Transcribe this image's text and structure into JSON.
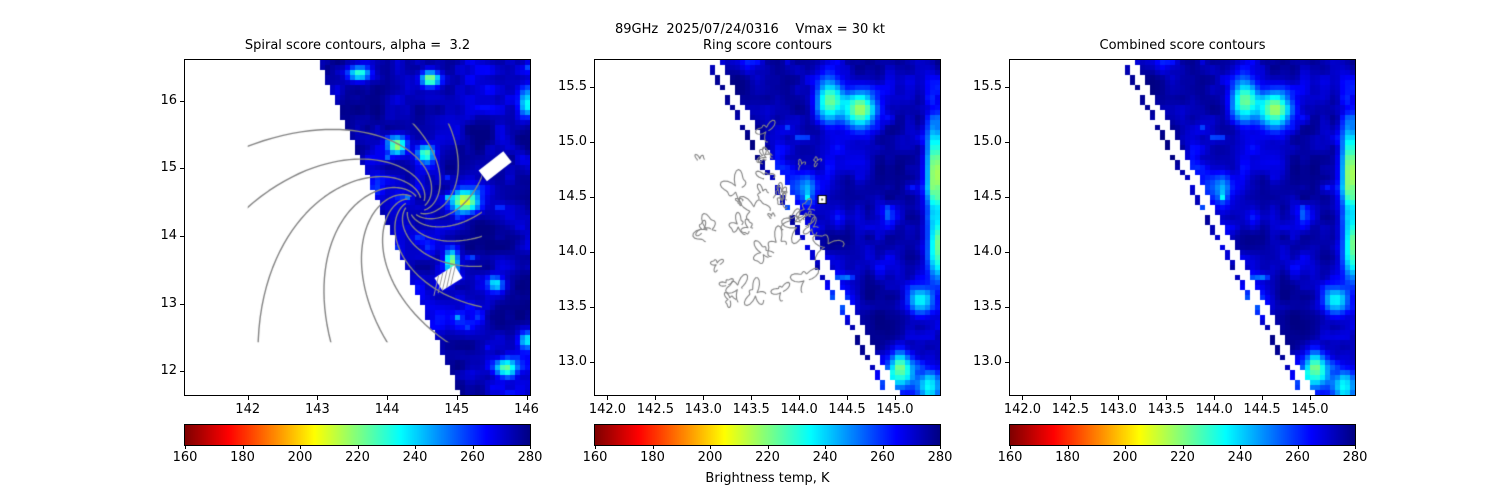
{
  "suptitle": "89GHz  2025/07/24/0316    Vmax = 30 kt",
  "colorbar": {
    "label": "Brightness temp, K",
    "tick_values": [
      160,
      180,
      200,
      220,
      240,
      260,
      280
    ],
    "tick_labels": [
      "160",
      "180",
      "200",
      "220",
      "240",
      "260",
      "280"
    ],
    "vmin": 160,
    "vmax": 280,
    "colormap": "jet_r",
    "stops": [
      [
        0,
        [
          128,
          0,
          0
        ]
      ],
      [
        0.125,
        [
          255,
          0,
          0
        ]
      ],
      [
        0.375,
        [
          255,
          255,
          0
        ]
      ],
      [
        0.625,
        [
          0,
          255,
          255
        ]
      ],
      [
        0.875,
        [
          0,
          0,
          255
        ]
      ],
      [
        1,
        [
          0,
          0,
          131
        ]
      ]
    ]
  },
  "chart_data": [
    {
      "type": "heatmap",
      "title": "Spiral score contours, alpha =  3.2",
      "xlim": [
        141.1,
        146.05
      ],
      "ylim": [
        11.65,
        16.6
      ],
      "xticks": [
        142,
        143,
        144,
        145,
        146
      ],
      "xtick_labels": [
        "142",
        "143",
        "144",
        "145",
        "146"
      ],
      "yticks": [
        12,
        13,
        14,
        15,
        16
      ],
      "ytick_labels": [
        "12",
        "13",
        "14",
        "15",
        "16"
      ],
      "colormap": "jet_r",
      "vmin": 160,
      "vmax": 280,
      "units": "K",
      "seed": 11,
      "background_temp_range_K": [
        255,
        281
      ],
      "swath": {
        "x_at_ytop": 143.0,
        "x_at_ybottom": 145.05,
        "dotted_edge": false,
        "no_data_side": "lower-left"
      },
      "bright_features": [
        {
          "x": 144.14,
          "y": 15.34,
          "sx": 0.1,
          "sy": 0.1,
          "dT": 62
        },
        {
          "x": 144.55,
          "y": 15.22,
          "sx": 0.09,
          "sy": 0.09,
          "dT": 46
        },
        {
          "x": 145.12,
          "y": 14.5,
          "sx": 0.14,
          "sy": 0.12,
          "dT": 68
        },
        {
          "x": 144.93,
          "y": 13.6,
          "sx": 0.07,
          "sy": 0.13,
          "dT": 55
        },
        {
          "x": 143.6,
          "y": 16.4,
          "sx": 0.12,
          "sy": 0.08,
          "dT": 50
        },
        {
          "x": 144.62,
          "y": 16.32,
          "sx": 0.1,
          "sy": 0.08,
          "dT": 55
        },
        {
          "x": 145.7,
          "y": 12.05,
          "sx": 0.12,
          "sy": 0.1,
          "dT": 55
        },
        {
          "x": 146.0,
          "y": 12.45,
          "sx": 0.08,
          "sy": 0.1,
          "dT": 42
        },
        {
          "x": 146.0,
          "y": 15.95,
          "sx": 0.08,
          "sy": 0.15,
          "dT": 45
        },
        {
          "x": 145.55,
          "y": 13.3,
          "sx": 0.08,
          "sy": 0.08,
          "dT": 35
        }
      ],
      "missing_patches": [
        {
          "x": 145.55,
          "y": 15.03,
          "w": 0.45,
          "h": 0.2,
          "rot": -38,
          "hatch": false
        },
        {
          "x": 144.88,
          "y": 13.38,
          "w": 0.34,
          "h": 0.22,
          "rot": -32,
          "hatch": true
        }
      ],
      "contours": {
        "type": "spiral",
        "color": "#858585",
        "cx": 144.4,
        "cy": 14.45,
        "arms": 13,
        "b": 0.95,
        "rmin": 0.14,
        "rmax": 3.4,
        "clip": {
          "x0": 142.0,
          "x1": 145.36,
          "y0": 12.43,
          "y1": 15.66
        }
      }
    },
    {
      "type": "heatmap",
      "title": "Ring score contours",
      "xlim": [
        141.87,
        145.47
      ],
      "ylim": [
        12.7,
        15.75
      ],
      "xticks": [
        142.0,
        142.5,
        143.0,
        143.5,
        144.0,
        144.5,
        145.0
      ],
      "xtick_labels": [
        "142.0",
        "142.5",
        "143.0",
        "143.5",
        "144.0",
        "144.5",
        "145.0"
      ],
      "yticks": [
        13.0,
        13.5,
        14.0,
        14.5,
        15.0,
        15.5
      ],
      "ytick_labels": [
        "13.0",
        "13.5",
        "14.0",
        "14.5",
        "15.0",
        "15.5"
      ],
      "colormap": "jet_r",
      "vmin": 160,
      "vmax": 280,
      "units": "K",
      "seed": 21,
      "background_temp_range_K": [
        255,
        281
      ],
      "swath": {
        "x_at_ytop": 143.17,
        "x_at_ybottom": 145.05,
        "dotted_edge": true,
        "no_data_side": "lower-left"
      },
      "bright_features": [
        {
          "x": 144.31,
          "y": 15.39,
          "sx": 0.1,
          "sy": 0.13,
          "dT": 50
        },
        {
          "x": 144.64,
          "y": 15.3,
          "sx": 0.12,
          "sy": 0.14,
          "dT": 58
        },
        {
          "x": 145.42,
          "y": 14.72,
          "sx": 0.07,
          "sy": 0.28,
          "dT": 66
        },
        {
          "x": 145.45,
          "y": 14.0,
          "sx": 0.08,
          "sy": 0.22,
          "dT": 52
        },
        {
          "x": 145.26,
          "y": 13.56,
          "sx": 0.09,
          "sy": 0.1,
          "dT": 42
        },
        {
          "x": 145.06,
          "y": 12.92,
          "sx": 0.1,
          "sy": 0.12,
          "dT": 48
        },
        {
          "x": 144.42,
          "y": 13.55,
          "sx": 0.12,
          "sy": 0.1,
          "dT": 28
        },
        {
          "x": 144.05,
          "y": 14.6,
          "sx": 0.16,
          "sy": 0.12,
          "dT": 20
        },
        {
          "x": 145.35,
          "y": 12.78,
          "sx": 0.1,
          "sy": 0.09,
          "dT": 40
        }
      ],
      "contours": {
        "type": "rings",
        "color": "#858585",
        "seed": 77,
        "count": 34,
        "x0": 142.95,
        "x1": 144.35,
        "y0": 13.55,
        "y1": 15.18
      },
      "marker": {
        "x": 144.24,
        "y": 14.48,
        "shape": "square",
        "face": "#ffffff",
        "edge": "#000000"
      }
    },
    {
      "type": "heatmap",
      "title": "Combined score contours",
      "xlim": [
        141.87,
        145.47
      ],
      "ylim": [
        12.7,
        15.75
      ],
      "xticks": [
        142.0,
        142.5,
        143.0,
        143.5,
        144.0,
        144.5,
        145.0
      ],
      "xtick_labels": [
        "142.0",
        "142.5",
        "143.0",
        "143.5",
        "144.0",
        "144.5",
        "145.0"
      ],
      "yticks": [
        13.0,
        13.5,
        14.0,
        14.5,
        15.0,
        15.5
      ],
      "ytick_labels": [
        "13.0",
        "13.5",
        "14.0",
        "14.5",
        "15.0",
        "15.5"
      ],
      "colormap": "jet_r",
      "vmin": 160,
      "vmax": 280,
      "units": "K",
      "seed": 21,
      "background_temp_range_K": [
        255,
        281
      ],
      "swath": {
        "x_at_ytop": 143.17,
        "x_at_ybottom": 145.05,
        "dotted_edge": true,
        "no_data_side": "lower-left"
      },
      "bright_features": [
        {
          "x": 144.31,
          "y": 15.39,
          "sx": 0.1,
          "sy": 0.13,
          "dT": 50
        },
        {
          "x": 144.64,
          "y": 15.3,
          "sx": 0.12,
          "sy": 0.14,
          "dT": 58
        },
        {
          "x": 145.42,
          "y": 14.72,
          "sx": 0.07,
          "sy": 0.28,
          "dT": 66
        },
        {
          "x": 145.45,
          "y": 14.0,
          "sx": 0.08,
          "sy": 0.22,
          "dT": 52
        },
        {
          "x": 145.26,
          "y": 13.56,
          "sx": 0.09,
          "sy": 0.1,
          "dT": 42
        },
        {
          "x": 145.06,
          "y": 12.92,
          "sx": 0.1,
          "sy": 0.12,
          "dT": 48
        },
        {
          "x": 144.42,
          "y": 13.55,
          "sx": 0.12,
          "sy": 0.1,
          "dT": 28
        },
        {
          "x": 144.05,
          "y": 14.6,
          "sx": 0.16,
          "sy": 0.12,
          "dT": 20
        },
        {
          "x": 145.35,
          "y": 12.78,
          "sx": 0.1,
          "sy": 0.09,
          "dT": 40
        }
      ]
    }
  ]
}
